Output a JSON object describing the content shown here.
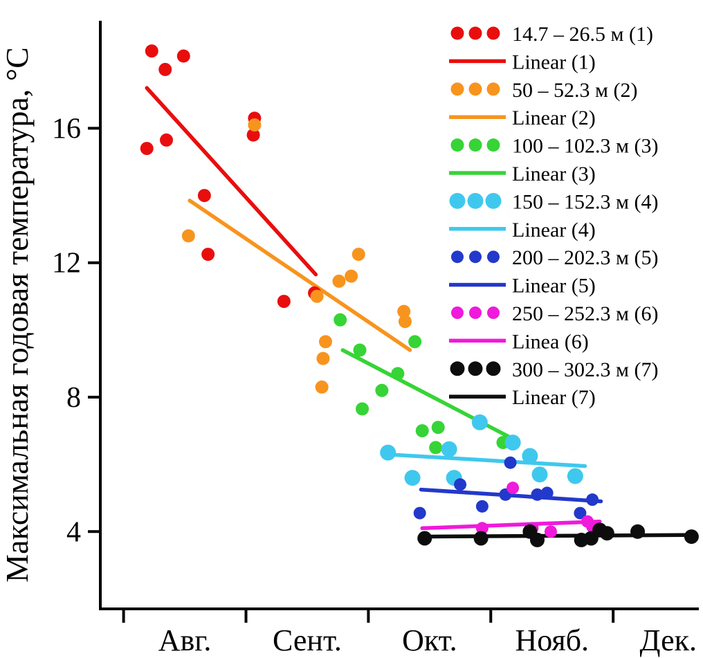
{
  "figure": {
    "background": "#ffffff",
    "axis_color": "#000000"
  },
  "chart_data": {
    "type": "scatter",
    "title": "",
    "xlabel": "",
    "ylabel": "Максимальная годовая температура, °С",
    "grid": false,
    "legend_position": "top-right",
    "x_axis": {
      "unit": "month (0 = начало Авг.; каждый месяц = 1)",
      "tick_positions": [
        0,
        1,
        2,
        3,
        4
      ],
      "month_labels": [
        "Авг.",
        "Сент.",
        "Окт.",
        "Нояб.",
        "Дек."
      ],
      "xlim": [
        -0.19,
        4.7
      ]
    },
    "y_axis": {
      "ticks": [
        4,
        8,
        12,
        16
      ],
      "ylim": [
        1.7,
        19.2
      ]
    },
    "series": [
      {
        "name": "14.7 – 26.5 м (1)",
        "color": "#e90e0e",
        "marker_radius": 9.5,
        "points": [
          [
            0.23,
            18.3
          ],
          [
            0.49,
            18.15
          ],
          [
            0.34,
            17.75
          ],
          [
            0.19,
            15.4
          ],
          [
            0.35,
            15.65
          ],
          [
            0.66,
            14.0
          ],
          [
            0.69,
            12.25
          ],
          [
            1.07,
            16.3
          ],
          [
            1.06,
            15.8
          ],
          [
            1.31,
            10.85
          ],
          [
            1.56,
            11.1
          ]
        ],
        "trend": {
          "label": "Linear (1)",
          "from": [
            0.19,
            17.2
          ],
          "to": [
            1.57,
            11.65
          ]
        }
      },
      {
        "name": "50 – 52.3 м (2)",
        "color": "#f7941e",
        "marker_radius": 9.5,
        "points": [
          [
            0.53,
            12.8
          ],
          [
            1.07,
            16.1
          ],
          [
            1.58,
            11.0
          ],
          [
            1.76,
            11.45
          ],
          [
            1.86,
            11.6
          ],
          [
            1.92,
            12.25
          ],
          [
            1.65,
            9.65
          ],
          [
            1.63,
            9.15
          ],
          [
            1.62,
            8.3
          ],
          [
            2.29,
            10.55
          ],
          [
            2.3,
            10.25
          ]
        ],
        "trend": {
          "label": "Linear (2)",
          "from": [
            0.54,
            13.85
          ],
          "to": [
            2.34,
            9.4
          ]
        }
      },
      {
        "name": "100 – 102.3 м (3)",
        "color": "#36d436",
        "marker_radius": 9.5,
        "points": [
          [
            1.77,
            10.3
          ],
          [
            1.93,
            9.4
          ],
          [
            1.95,
            7.65
          ],
          [
            2.11,
            8.2
          ],
          [
            2.24,
            8.7
          ],
          [
            2.38,
            9.65
          ],
          [
            2.44,
            7.0
          ],
          [
            2.57,
            7.1
          ],
          [
            2.55,
            6.5
          ],
          [
            3.1,
            6.65
          ]
        ],
        "trend": {
          "label": "Linear (3)",
          "from": [
            1.79,
            9.4
          ],
          "to": [
            3.16,
            6.8
          ]
        }
      },
      {
        "name": "150 – 152.3 м (4)",
        "color": "#3fc8ee",
        "marker_radius": 11.5,
        "points": [
          [
            2.16,
            6.35
          ],
          [
            2.36,
            5.6
          ],
          [
            2.66,
            6.45
          ],
          [
            2.7,
            5.6
          ],
          [
            2.91,
            7.25
          ],
          [
            3.18,
            6.65
          ],
          [
            3.32,
            6.25
          ],
          [
            3.4,
            5.7
          ],
          [
            3.69,
            5.65
          ]
        ],
        "trend": {
          "label": "Linear (4)",
          "from": [
            2.14,
            6.3
          ],
          "to": [
            3.77,
            5.95
          ]
        }
      },
      {
        "name": "200 – 202.3 м (5)",
        "color": "#2239cb",
        "marker_radius": 9,
        "points": [
          [
            2.42,
            4.55
          ],
          [
            2.75,
            5.4
          ],
          [
            2.93,
            4.75
          ],
          [
            3.12,
            5.1
          ],
          [
            3.16,
            6.05
          ],
          [
            3.38,
            5.1
          ],
          [
            3.46,
            5.15
          ],
          [
            3.73,
            4.55
          ],
          [
            3.83,
            4.95
          ]
        ],
        "trend": {
          "label": "Linear (5)",
          "from": [
            2.43,
            5.25
          ],
          "to": [
            3.9,
            4.9
          ]
        }
      },
      {
        "name": "250 – 252.3 м (6)",
        "color": "#ef1adb",
        "marker_radius": 9,
        "points": [
          [
            3.18,
            5.3
          ],
          [
            2.93,
            4.1
          ],
          [
            3.34,
            4.1
          ],
          [
            3.49,
            4.0
          ],
          [
            3.79,
            4.3
          ],
          [
            3.83,
            4.15
          ],
          [
            3.86,
            4.05
          ]
        ],
        "trend": {
          "label": "Linea (6)",
          "from": [
            2.44,
            4.1
          ],
          "to": [
            3.89,
            4.3
          ]
        }
      },
      {
        "name": "300 – 302.3 м (7)",
        "color": "#0d0d0d",
        "marker_radius": 10.5,
        "points": [
          [
            2.46,
            3.8
          ],
          [
            2.92,
            3.8
          ],
          [
            3.32,
            4.0
          ],
          [
            3.38,
            3.75
          ],
          [
            3.74,
            3.75
          ],
          [
            3.82,
            3.8
          ],
          [
            3.89,
            4.05
          ],
          [
            3.95,
            3.95
          ],
          [
            4.2,
            4.0
          ],
          [
            4.64,
            3.85
          ]
        ],
        "trend": {
          "label": "Linear (7)",
          "from": [
            2.44,
            3.85
          ],
          "to": [
            4.68,
            3.9
          ]
        }
      }
    ]
  }
}
